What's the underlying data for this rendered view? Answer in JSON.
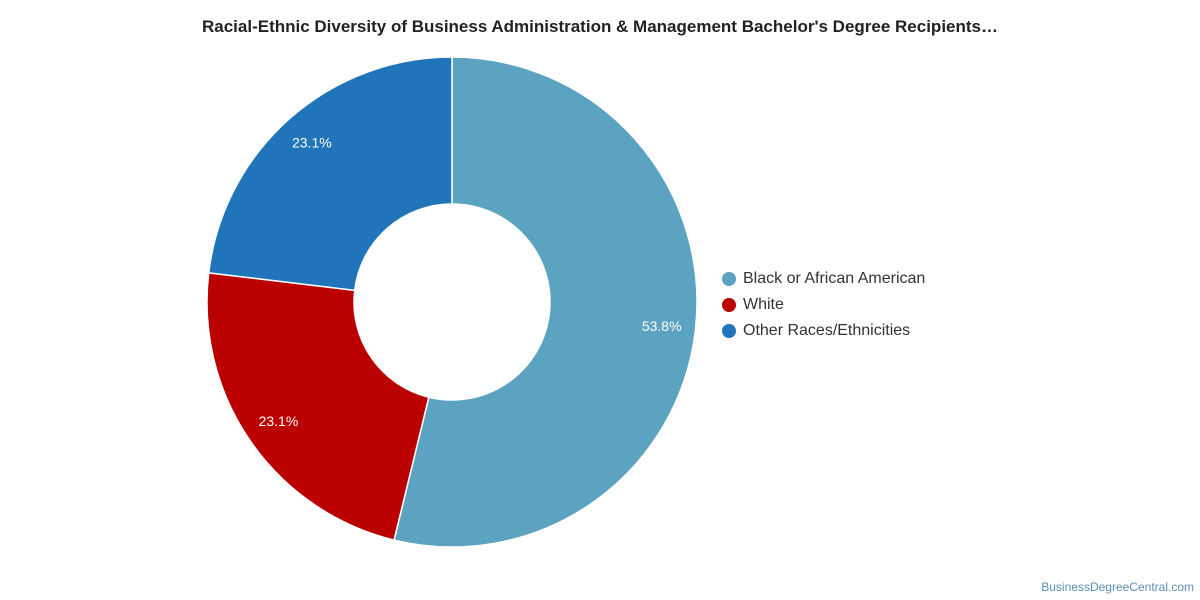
{
  "chart_data": {
    "type": "pie",
    "variant": "donut",
    "title": "Racial-Ethnic Diversity of Business Administration & Management Bachelor's Degree Recipients…",
    "slices": [
      {
        "label": "Black or African American",
        "value": 53.8,
        "display": "53.8%",
        "color": "#5ba3c0"
      },
      {
        "label": "White",
        "value": 23.1,
        "display": "23.1%",
        "color": "#bb0000"
      },
      {
        "label": "Other Races/Ethnicities",
        "value": 23.1,
        "display": "23.1%",
        "color": "#1f74ba"
      }
    ],
    "legend_position": "right"
  },
  "watermark": "BusinessDegreeCentral.com"
}
